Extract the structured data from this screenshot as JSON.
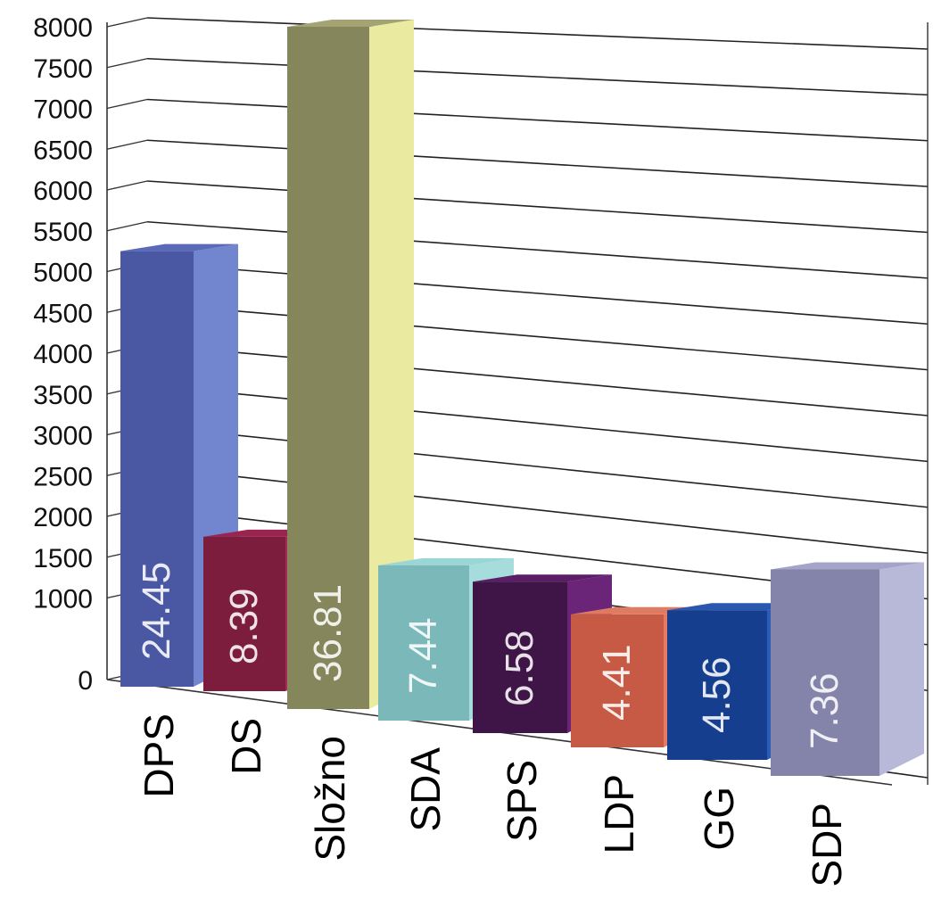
{
  "chart_data": {
    "type": "bar",
    "categories": [
      "DPS",
      "DS",
      "Složno",
      "SDA",
      "SPS",
      "LDP",
      "GG",
      "SDP"
    ],
    "values": [
      5250,
      1750,
      8000,
      1400,
      1200,
      800,
      850,
      1350
    ],
    "data_labels": [
      "24.45",
      "8.39",
      "36.81",
      "7.44",
      "6.58",
      "4.41",
      "4.56",
      "7.36"
    ],
    "y_ticks": [
      "0",
      "1000",
      "1500",
      "2000",
      "2500",
      "3000",
      "3500",
      "4000",
      "4500",
      "5000",
      "5500",
      "6000",
      "6500",
      "7000",
      "7500",
      "8000"
    ],
    "ylim": [
      0,
      8000
    ],
    "grid": true,
    "style": "3d-bar",
    "title": "",
    "xlabel": "",
    "ylabel": "",
    "colors": {
      "front": [
        "#4a58a4",
        "#7c1d3e",
        "#86865c",
        "#7ab8ba",
        "#3f1548",
        "#c65a44",
        "#153f8e",
        "#8483aa"
      ],
      "side": [
        "#7186cf",
        "#a8285a",
        "#eaeaa0",
        "#a6dcdc",
        "#6a2478",
        "#e47a60",
        "#2a5cb8",
        "#b8b8d8"
      ],
      "top": [
        "#5a6ab8",
        "#9a2450",
        "#a3a374",
        "#9ad6d6",
        "#5a1e66",
        "#e07a62",
        "#2a58b0",
        "#a4a4c8"
      ]
    }
  }
}
